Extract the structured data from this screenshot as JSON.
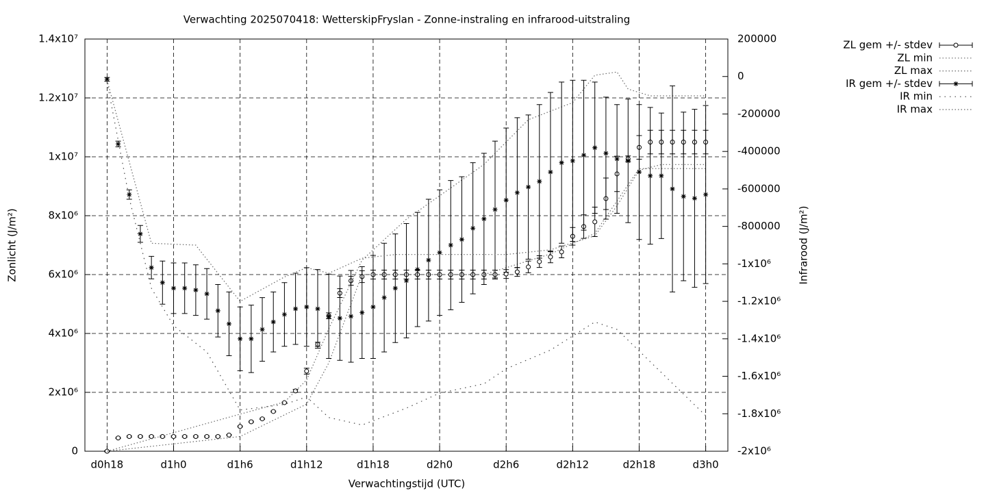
{
  "chart_data": {
    "type": "errorbar",
    "title": "Verwachting 2025070418: WetterskipFryslan - Zonne-instraling en infrarood-uitstraling",
    "xlabel": "Verwachtingstijd (UTC)",
    "ylabel": "Zonlicht (J/m²)",
    "y2label": "Infrarood (J/m²)",
    "grid": true,
    "legend": "outside-right-top",
    "x": [
      0,
      1,
      2,
      3,
      4,
      5,
      6,
      7,
      8,
      9,
      10,
      11,
      12,
      13,
      14,
      15,
      16,
      17,
      18,
      19,
      20,
      21,
      22,
      23,
      24,
      25,
      26,
      27,
      28,
      29,
      30,
      31,
      32,
      33,
      34,
      35,
      36,
      37,
      38,
      39,
      40,
      41,
      42,
      43,
      44,
      45,
      46,
      47,
      48,
      49,
      50,
      51,
      52,
      53,
      54
    ],
    "xlim": [
      -2,
      56
    ],
    "xticks": [
      {
        "value": 0,
        "label": "d0h18"
      },
      {
        "value": 6,
        "label": "d1h0"
      },
      {
        "value": 12,
        "label": "d1h6"
      },
      {
        "value": 18,
        "label": "d1h12"
      },
      {
        "value": 24,
        "label": "d1h18"
      },
      {
        "value": 30,
        "label": "d2h0"
      },
      {
        "value": 36,
        "label": "d2h6"
      },
      {
        "value": 42,
        "label": "d2h12"
      },
      {
        "value": 48,
        "label": "d2h18"
      },
      {
        "value": 54,
        "label": "d3h0"
      }
    ],
    "ylim": [
      0,
      14000000
    ],
    "yticks": [
      0,
      {
        "value": 2000000,
        "label": "2x10⁶"
      },
      {
        "value": 4000000,
        "label": "4x10⁶"
      },
      {
        "value": 6000000,
        "label": "6x10⁶"
      },
      {
        "value": 8000000,
        "label": "8x10⁶"
      },
      {
        "value": 10000000,
        "label": "1x10⁷"
      },
      {
        "value": 12000000,
        "label": "1.2x10⁷"
      },
      {
        "value": 14000000,
        "label": "1.4x10⁷"
      }
    ],
    "y2lim": [
      -2000000,
      200000
    ],
    "y2ticks": [
      200000,
      0,
      -200000,
      -400000,
      -600000,
      -800000,
      {
        "value": -1000000,
        "label": "-1x10⁶"
      },
      {
        "value": -1200000,
        "label": "-1.2x10⁶"
      },
      {
        "value": -1400000,
        "label": "-1.4x10⁶"
      },
      {
        "value": -1600000,
        "label": "-1.6x10⁶"
      },
      {
        "value": -1800000,
        "label": "-1.8x10⁶"
      },
      {
        "value": -2000000,
        "label": "-2x10⁶"
      }
    ],
    "series": [
      {
        "name": "ZL gem +/- stdev",
        "color": "#000000",
        "marker": "circle",
        "values": [
          0,
          450000,
          500000,
          500000,
          500000,
          500000,
          500000,
          500000,
          500000,
          500000,
          500000,
          550000,
          840000,
          1000000,
          1100000,
          1350000,
          1650000,
          2050000,
          2720000,
          3630000,
          4600000,
          5370000,
          5790000,
          5930000,
          6000000,
          6000000,
          6000000,
          6000000,
          6000000,
          6000000,
          6000000,
          6000000,
          6000000,
          6000000,
          6000000,
          6000000,
          6020000,
          6090000,
          6260000,
          6440000,
          6600000,
          6770000,
          7300000,
          7630000,
          7790000,
          8580000,
          9420000,
          9930000,
          10320000,
          10500000,
          10500000,
          10500000,
          10500000,
          10500000,
          10500000
        ],
        "errors": [
          20000,
          20000,
          20000,
          20000,
          20000,
          20000,
          20000,
          20000,
          20000,
          20000,
          20000,
          20000,
          20000,
          20000,
          20000,
          20000,
          20000,
          50000,
          100000,
          70000,
          100000,
          150000,
          150000,
          200000,
          150000,
          150000,
          150000,
          150000,
          150000,
          150000,
          150000,
          150000,
          150000,
          150000,
          150000,
          150000,
          150000,
          150000,
          200000,
          200000,
          200000,
          200000,
          300000,
          400000,
          500000,
          700000,
          600000,
          100000,
          400000,
          400000,
          400000,
          400000,
          400000,
          400000,
          400000
        ]
      },
      {
        "name": "ZL min",
        "color": "#666666",
        "style": "dotted",
        "x": [
          0,
          12,
          18,
          20,
          23,
          34,
          40,
          44,
          48,
          54
        ],
        "values": [
          0,
          500000,
          1600000,
          3000000,
          6000000,
          6000000,
          6700000,
          7400000,
          9600000,
          9600000
        ]
      },
      {
        "name": "ZL max",
        "color": "#666666",
        "style": "dotted",
        "x": [
          0,
          12,
          16,
          18,
          20,
          23,
          27,
          34,
          38,
          42,
          44,
          46,
          47,
          49,
          54
        ],
        "values": [
          0,
          1260000,
          1670000,
          2420000,
          4160000,
          6490000,
          7880000,
          9740000,
          11260000,
          11840000,
          12770000,
          12880000,
          12300000,
          12070000,
          12070000
        ]
      },
      {
        "name": "IR gem +/- stdev",
        "color": "#000000",
        "marker": "star",
        "axis": "y2",
        "values": [
          -15000,
          -360000,
          -630000,
          -840000,
          -1020000,
          -1100000,
          -1130000,
          -1130000,
          -1140000,
          -1160000,
          -1250000,
          -1320000,
          -1400000,
          -1400000,
          -1350000,
          -1310000,
          -1270000,
          -1240000,
          -1230000,
          -1240000,
          -1280000,
          -1290000,
          -1280000,
          -1260000,
          -1230000,
          -1180000,
          -1130000,
          -1090000,
          -1030000,
          -980000,
          -940000,
          -900000,
          -870000,
          -810000,
          -760000,
          -710000,
          -660000,
          -620000,
          -590000,
          -560000,
          -510000,
          -460000,
          -450000,
          -420000,
          -380000,
          -410000,
          -440000,
          -450000,
          -510000,
          -530000,
          -530000,
          -600000,
          -640000,
          -650000,
          -630000
        ],
        "errors": [
          10000,
          15000,
          25000,
          45000,
          60000,
          115000,
          135000,
          135000,
          135000,
          135000,
          140000,
          170000,
          170000,
          180000,
          170000,
          160000,
          170000,
          190000,
          210000,
          210000,
          225000,
          225000,
          245000,
          245000,
          275000,
          290000,
          290000,
          305000,
          305000,
          325000,
          335000,
          345000,
          335000,
          350000,
          350000,
          365000,
          385000,
          400000,
          385000,
          410000,
          425000,
          430000,
          430000,
          400000,
          350000,
          300000,
          290000,
          330000,
          360000,
          365000,
          335000,
          550000,
          450000,
          475000,
          475000
        ]
      },
      {
        "name": "IR min",
        "color": "#444444",
        "style": "sparse-dotted",
        "axis": "y2",
        "x": [
          0,
          2,
          4,
          6,
          9,
          12,
          16,
          18,
          20,
          23,
          27,
          30,
          34,
          36,
          40,
          44,
          46,
          50,
          54
        ],
        "values": [
          -30000,
          -650000,
          -1130000,
          -1330000,
          -1470000,
          -1780000,
          -1750000,
          -1710000,
          -1820000,
          -1860000,
          -1770000,
          -1690000,
          -1640000,
          -1560000,
          -1460000,
          -1310000,
          -1350000,
          -1580000,
          -1810000
        ]
      },
      {
        "name": "IR max",
        "color": "#666666",
        "style": "dotted",
        "axis": "y2",
        "x": [
          0,
          4,
          8,
          12,
          16,
          18,
          20,
          23,
          26,
          30,
          36,
          40,
          44,
          46,
          48,
          50,
          54
        ],
        "values": [
          -20000,
          -890000,
          -900000,
          -1200000,
          -1070000,
          -1020000,
          -1050000,
          -970000,
          -950000,
          -950000,
          -950000,
          -925000,
          -850000,
          -690000,
          -500000,
          -470000,
          -470000
        ]
      }
    ]
  }
}
